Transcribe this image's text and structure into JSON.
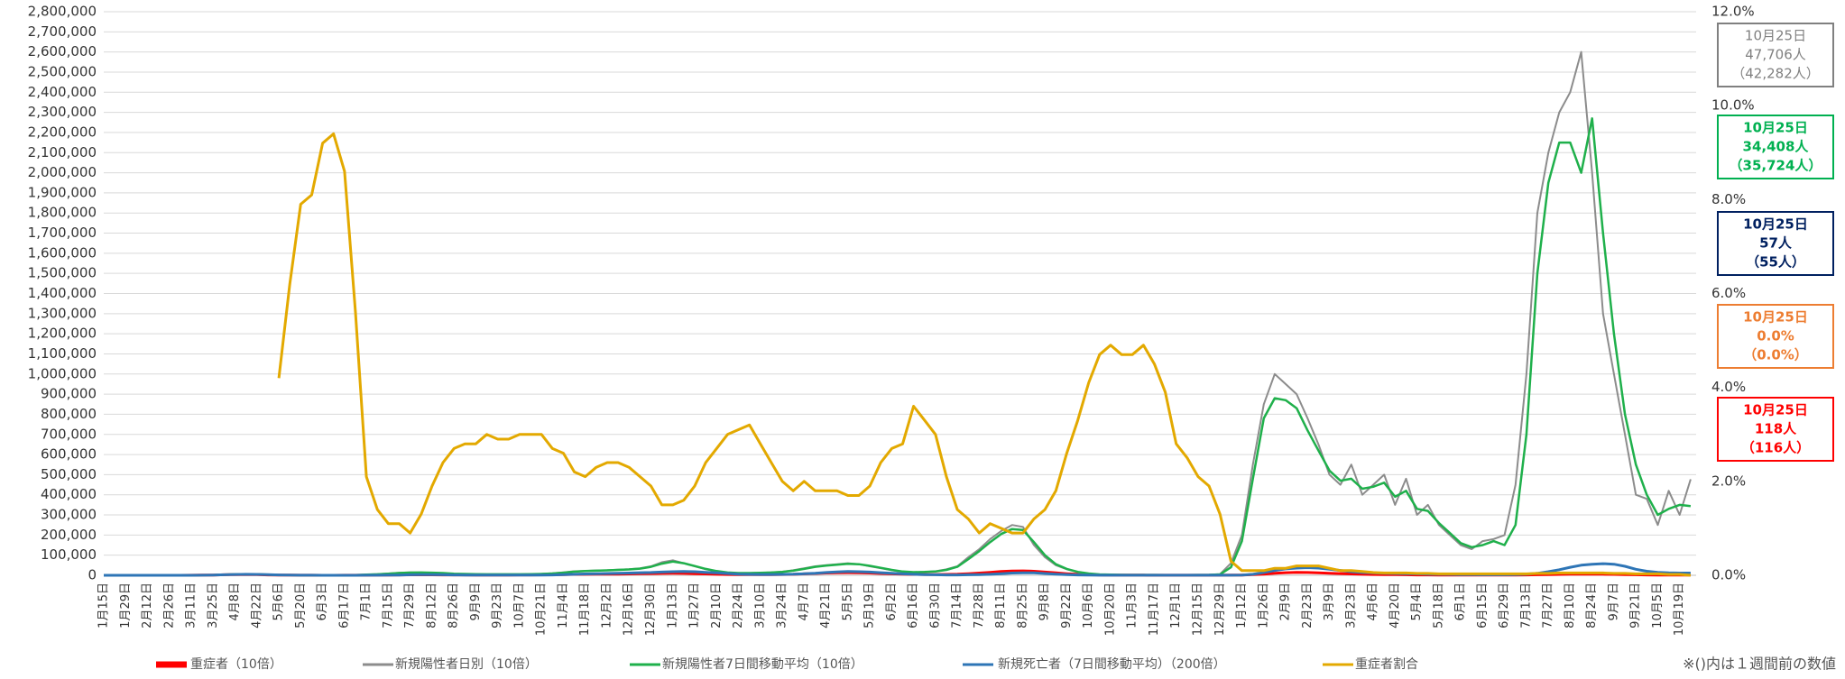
{
  "chart_data": {
    "type": "line",
    "categories": [
      "1月15日",
      null,
      "1月29日",
      null,
      "2月12日",
      null,
      "2月26日",
      null,
      "3月11日",
      null,
      "3月25日",
      null,
      "4月8日",
      null,
      "4月22日",
      null,
      "5月6日",
      null,
      "5月20日",
      null,
      "6月3日",
      null,
      "6月17日",
      null,
      "7月1日",
      null,
      "7月15日",
      null,
      "7月29日",
      null,
      "8月12日",
      null,
      "8月26日",
      null,
      "9月9日",
      null,
      "9月23日",
      null,
      "10月7日",
      null,
      "10月21日",
      null,
      "11月4日",
      null,
      "11月18日",
      null,
      "12月2日",
      null,
      "12月16日",
      null,
      "12月30日",
      null,
      "1月13日",
      null,
      "1月27日",
      null,
      "2月10日",
      null,
      "2月24日",
      null,
      "3月10日",
      null,
      "3月24日",
      null,
      "4月7日",
      null,
      "4月21日",
      null,
      "5月5日",
      null,
      "5月19日",
      null,
      "6月2日",
      null,
      "6月16日",
      null,
      "6月30日",
      null,
      "7月14日",
      null,
      "7月28日",
      null,
      "8月11日",
      null,
      "8月25日",
      null,
      "9月8日",
      null,
      "9月22日",
      null,
      "10月6日",
      null,
      "10月20日",
      null,
      "11月3日",
      null,
      "11月17日",
      null,
      "12月1日",
      null,
      "12月15日",
      null,
      "12月29日",
      null,
      "1月12日",
      null,
      "1月26日",
      null,
      "2月9日",
      null,
      "2月23日",
      null,
      "3月9日",
      null,
      "3月23日",
      null,
      "4月6日",
      null,
      "4月20日",
      null,
      "5月4日",
      null,
      "5月18日",
      null,
      "6月1日",
      null,
      "6月15日",
      null,
      "6月29日",
      null,
      "7月13日",
      null,
      "7月27日",
      null,
      "8月10日",
      null,
      "8月24日",
      null,
      "9月7日",
      null,
      "9月21日",
      null,
      "10月5日",
      null,
      "10月19日",
      null
    ],
    "series": [
      {
        "name": "重症者（10倍）",
        "color": "#ff0000",
        "width": 3,
        "values": [
          0,
          0,
          0,
          0,
          0,
          0,
          0,
          0,
          300,
          800,
          1500,
          2500,
          3500,
          3500,
          3000,
          2000,
          1200,
          700,
          400,
          300,
          200,
          200,
          300,
          400,
          600,
          1000,
          1500,
          2000,
          2300,
          2300,
          2200,
          2000,
          1800,
          1600,
          1500,
          1400,
          1400,
          1500,
          1600,
          1800,
          2200,
          2800,
          3500,
          4500,
          5000,
          5500,
          5500,
          6000,
          6500,
          7500,
          8500,
          9500,
          10000,
          9500,
          8000,
          6500,
          5000,
          4000,
          3500,
          3500,
          3500,
          3500,
          4000,
          5000,
          7000,
          9000,
          11000,
          12500,
          13000,
          12500,
          11000,
          9000,
          7000,
          5500,
          4500,
          4000,
          4000,
          4500,
          5500,
          8000,
          11000,
          15000,
          19000,
          21000,
          22000,
          20000,
          16000,
          12000,
          8000,
          5000,
          3000,
          2000,
          1500,
          1000,
          800,
          700,
          600,
          500,
          500,
          500,
          500,
          500,
          600,
          700,
          1200,
          3000,
          6000,
          10000,
          13000,
          14500,
          14000,
          12500,
          10500,
          8500,
          6500,
          5000,
          4000,
          3500,
          3000,
          2500,
          2000,
          1800,
          1500,
          1300,
          1100,
          1000,
          1000,
          1000,
          1000,
          1200,
          1800,
          2500,
          3500,
          4500,
          5500,
          6000,
          6000,
          5500,
          4500,
          3500,
          2500,
          2000,
          1500,
          1300,
          1200,
          1180
        ]
      },
      {
        "name": "新規陽性者日別（10倍）",
        "color": "#8c8c8c",
        "width": 2,
        "values": [
          0,
          0,
          0,
          0,
          0,
          0,
          0,
          200,
          500,
          1000,
          2000,
          4000,
          5500,
          6000,
          4500,
          2500,
          1200,
          600,
          300,
          300,
          400,
          600,
          1000,
          2000,
          3500,
          6000,
          9000,
          13000,
          15000,
          14000,
          12000,
          10000,
          7000,
          6000,
          5000,
          5000,
          5000,
          5000,
          5000,
          6000,
          7000,
          10000,
          15000,
          20000,
          22000,
          24000,
          25000,
          28000,
          30000,
          35000,
          45000,
          65000,
          75000,
          60000,
          45000,
          30000,
          20000,
          12000,
          10000,
          11000,
          12000,
          15000,
          18000,
          25000,
          35000,
          45000,
          50000,
          55000,
          60000,
          55000,
          45000,
          35000,
          25000,
          17000,
          15000,
          17000,
          20000,
          30000,
          45000,
          90000,
          130000,
          180000,
          220000,
          250000,
          240000,
          150000,
          90000,
          50000,
          30000,
          15000,
          8000,
          4000,
          3000,
          2000,
          2000,
          2000,
          1500,
          1500,
          1500,
          1500,
          2000,
          2500,
          6000,
          60000,
          200000,
          550000,
          850000,
          1000000,
          950000,
          900000,
          780000,
          650000,
          500000,
          450000,
          550000,
          400000,
          450000,
          500000,
          350000,
          480000,
          300000,
          350000,
          250000,
          200000,
          150000,
          130000,
          170000,
          180000,
          200000,
          450000,
          1000000,
          1800000,
          2100000,
          2300000,
          2400000,
          2600000,
          2000000,
          1300000,
          1000000,
          700000,
          400000,
          380000,
          250000,
          420000,
          300000,
          477060
        ]
      },
      {
        "name": "新規陽性者7日間移動平均（10倍）",
        "color": "#1fb04b",
        "width": 2.5,
        "values": [
          0,
          0,
          0,
          0,
          0,
          0,
          0,
          100,
          400,
          800,
          1500,
          3000,
          4500,
          5500,
          5000,
          3000,
          1500,
          800,
          400,
          300,
          350,
          500,
          800,
          1500,
          3000,
          5000,
          8000,
          11000,
          13500,
          14000,
          13000,
          11000,
          8000,
          6500,
          5500,
          5000,
          5000,
          5000,
          5000,
          5500,
          6500,
          9000,
          13000,
          18000,
          21000,
          23000,
          24500,
          27000,
          29000,
          33000,
          42000,
          58000,
          68000,
          60000,
          46000,
          32000,
          21000,
          14000,
          11000,
          11000,
          12000,
          14000,
          17000,
          23000,
          32000,
          42000,
          48000,
          53000,
          57000,
          55000,
          47000,
          37000,
          27000,
          19000,
          15500,
          16500,
          19000,
          27000,
          42000,
          80000,
          120000,
          165000,
          205000,
          230000,
          225000,
          165000,
          100000,
          55000,
          32000,
          17000,
          9000,
          4500,
          3000,
          2200,
          2000,
          1900,
          1600,
          1500,
          1500,
          1500,
          1800,
          2300,
          4500,
          40000,
          170000,
          480000,
          780000,
          880000,
          870000,
          830000,
          720000,
          620000,
          520000,
          470000,
          480000,
          430000,
          440000,
          460000,
          390000,
          420000,
          330000,
          320000,
          260000,
          210000,
          160000,
          140000,
          150000,
          170000,
          150000,
          250000,
          700000,
          1500000,
          1950000,
          2150000,
          2150000,
          2000000,
          2270000,
          1700000,
          1200000,
          800000,
          550000,
          400000,
          300000,
          330000,
          350000,
          344080
        ]
      },
      {
        "name": "新規死亡者（7日間移動平均）（200倍）",
        "color": "#2e75b6",
        "width": 3,
        "values": [
          0,
          0,
          0,
          0,
          0,
          0,
          0,
          0,
          200,
          600,
          1200,
          2500,
          4000,
          5000,
          4500,
          3000,
          2000,
          1000,
          500,
          300,
          200,
          200,
          200,
          200,
          300,
          500,
          800,
          1500,
          2500,
          3000,
          3000,
          2500,
          2000,
          1500,
          1200,
          1000,
          1000,
          1000,
          1000,
          1200,
          1500,
          2000,
          3500,
          5000,
          6500,
          8000,
          9000,
          10000,
          11000,
          13000,
          14000,
          16000,
          18000,
          19000,
          18000,
          15000,
          12000,
          9000,
          6000,
          4500,
          4000,
          4000,
          4500,
          5500,
          7500,
          10000,
          14000,
          17000,
          19000,
          18000,
          16000,
          13000,
          10000,
          7000,
          5000,
          3500,
          2500,
          2000,
          2000,
          2500,
          3500,
          5000,
          8000,
          11000,
          12500,
          12000,
          9000,
          6000,
          3500,
          2000,
          1000,
          600,
          400,
          300,
          300,
          300,
          300,
          300,
          300,
          300,
          300,
          400,
          400,
          600,
          1500,
          5000,
          14000,
          24000,
          32000,
          36000,
          38000,
          36000,
          30000,
          24000,
          18000,
          14000,
          12000,
          10000,
          9000,
          8000,
          7000,
          6000,
          5000,
          4500,
          3500,
          3000,
          2500,
          2500,
          2500,
          3500,
          6000,
          10000,
          18000,
          28000,
          40000,
          50000,
          55000,
          58000,
          55000,
          45000,
          30000,
          20000,
          15000,
          12000,
          11000,
          11400
        ]
      },
      {
        "name": "重症者割合",
        "color": "#e3a900",
        "width": 3,
        "axis": "y2",
        "values": [
          null,
          null,
          null,
          null,
          null,
          null,
          null,
          null,
          null,
          null,
          null,
          null,
          null,
          null,
          null,
          null,
          4.2,
          6.2,
          7.9,
          8.1,
          9.2,
          9.4,
          8.6,
          5.6,
          2.1,
          1.4,
          1.1,
          1.1,
          0.9,
          1.3,
          1.9,
          2.4,
          2.7,
          2.8,
          2.8,
          3.0,
          2.9,
          2.9,
          3.0,
          3.0,
          3.0,
          2.7,
          2.6,
          2.2,
          2.1,
          2.3,
          2.4,
          2.4,
          2.3,
          2.1,
          1.9,
          1.5,
          1.5,
          1.6,
          1.9,
          2.4,
          2.7,
          3.0,
          3.1,
          3.2,
          2.8,
          2.4,
          2.0,
          1.8,
          2.0,
          1.8,
          1.8,
          1.8,
          1.7,
          1.7,
          1.9,
          2.4,
          2.7,
          2.8,
          3.6,
          3.3,
          3.0,
          2.1,
          1.4,
          1.2,
          0.9,
          1.1,
          1.0,
          0.9,
          0.9,
          1.2,
          1.4,
          1.8,
          2.6,
          3.3,
          4.1,
          4.7,
          4.9,
          4.7,
          4.7,
          4.9,
          4.5,
          3.9,
          2.8,
          2.5,
          2.1,
          1.9,
          1.3,
          0.3,
          0.1,
          0.1,
          0.1,
          0.15,
          0.15,
          0.2,
          0.2,
          0.2,
          0.15,
          0.1,
          0.1,
          0.08,
          0.06,
          0.05,
          0.05,
          0.05,
          0.04,
          0.04,
          0.03,
          0.03,
          0.03,
          0.03,
          0.03,
          0.03,
          0.03,
          0.03,
          0.03,
          0.04,
          0.04,
          0.05,
          0.05,
          0.05,
          0.05,
          0.05,
          0.04,
          0.04,
          0.03,
          0.03,
          0.03,
          0.02,
          0.02,
          0.0
        ]
      }
    ],
    "ylim": [
      0,
      2800000
    ],
    "yticks": [
      0,
      {
        "value": 100000,
        "label": "100,000"
      },
      {
        "value": 200000,
        "label": "200,000"
      },
      {
        "value": 300000,
        "label": "300,000"
      },
      {
        "value": 400000,
        "label": "400,000"
      },
      {
        "value": 500000,
        "label": "500,000"
      },
      {
        "value": 600000,
        "label": "600,000"
      },
      {
        "value": 700000,
        "label": "700,000"
      },
      {
        "value": 800000,
        "label": "800,000"
      },
      {
        "value": 900000,
        "label": "900,000"
      },
      {
        "value": 1000000,
        "label": "1,000,000"
      },
      {
        "value": 1100000,
        "label": "1,100,000"
      },
      {
        "value": 1200000,
        "label": "1,200,000"
      },
      {
        "value": 1300000,
        "label": "1,300,000"
      },
      {
        "value": 1400000,
        "label": "1,400,000"
      },
      {
        "value": 1500000,
        "label": "1,500,000"
      },
      {
        "value": 1600000,
        "label": "1,600,000"
      },
      {
        "value": 1700000,
        "label": "1,700,000"
      },
      {
        "value": 1800000,
        "label": "1,800,000"
      },
      {
        "value": 1900000,
        "label": "1,900,000"
      },
      {
        "value": 2000000,
        "label": "2,000,000"
      },
      {
        "value": 2100000,
        "label": "2,100,000"
      },
      {
        "value": 2200000,
        "label": "2,200,000"
      },
      {
        "value": 2300000,
        "label": "2,300,000"
      },
      {
        "value": 2400000,
        "label": "2,400,000"
      },
      {
        "value": 2500000,
        "label": "2,500,000"
      },
      {
        "value": 2600000,
        "label": "2,600,000"
      },
      {
        "value": 2700000,
        "label": "2,700,000"
      },
      {
        "value": 2800000,
        "label": "2,800,000"
      }
    ],
    "y2lim": [
      0,
      12
    ],
    "y2ticks": [
      {
        "value": 0,
        "label": "0.0%"
      },
      {
        "value": 2,
        "label": "2.0%"
      },
      {
        "value": 4,
        "label": "4.0%"
      },
      {
        "value": 6,
        "label": "6.0%"
      },
      {
        "value": 8,
        "label": "8.0%"
      },
      {
        "value": 10,
        "label": "10.0%"
      },
      {
        "value": 12,
        "label": "12.0%"
      }
    ],
    "grid": true,
    "legend": "bottom",
    "callouts": [
      {
        "color": "#808080",
        "lines": [
          "10月25日",
          "47,706人",
          "（42,282人）"
        ]
      },
      {
        "color": "#00b050",
        "lines": [
          "10月25日",
          "34,408人",
          "（35,724人）"
        ]
      },
      {
        "color": "#002060",
        "lines": [
          "10月25日",
          "57人",
          "（55人）"
        ]
      },
      {
        "color": "#ed7d31",
        "lines": [
          "10月25日",
          "0.0%",
          "（0.0%）"
        ]
      },
      {
        "color": "#ff0000",
        "lines": [
          "10月25日",
          "118人",
          "（116人）"
        ]
      }
    ],
    "note": "※()内は１週間前の数値"
  }
}
